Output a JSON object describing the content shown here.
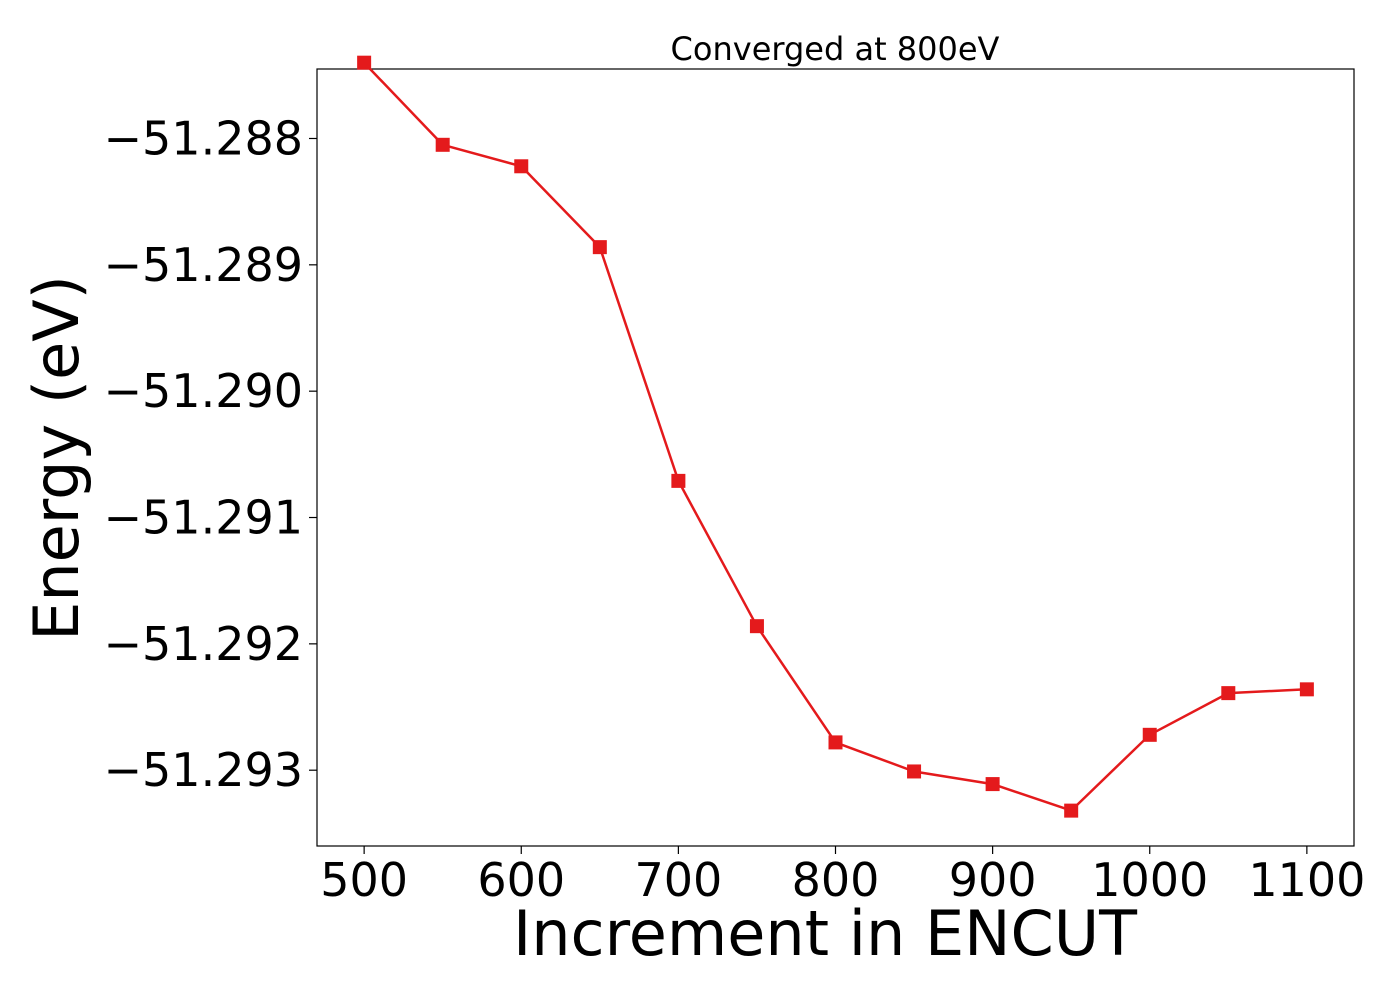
{
  "chart_data": {
    "type": "line",
    "title": "Converged at 800eV",
    "xlabel": "Increment in ENCUT",
    "ylabel": "Energy (eV)",
    "xlim": [
      470,
      1130
    ],
    "ylim": [
      -51.2936,
      -51.28745
    ],
    "x_ticks": [
      500,
      600,
      700,
      800,
      900,
      1000,
      1100
    ],
    "x_tick_labels": [
      "500",
      "600",
      "700",
      "800",
      "900",
      "1000",
      "1100"
    ],
    "y_ticks": [
      -51.288,
      -51.289,
      -51.29,
      -51.291,
      -51.292,
      -51.293
    ],
    "y_tick_labels": [
      "−51.288",
      "−51.289",
      "−51.290",
      "−51.291",
      "−51.292",
      "−51.293"
    ],
    "grid": false,
    "legend": "none",
    "series": [
      {
        "color": "#e41a1c",
        "marker": "square",
        "x": [
          500,
          550,
          600,
          650,
          700,
          750,
          800,
          850,
          900,
          950,
          1000,
          1050,
          1100
        ],
        "y": [
          -51.2874,
          -51.28805,
          -51.28822,
          -51.28886,
          -51.29071,
          -51.29186,
          -51.29278,
          -51.29301,
          -51.29311,
          -51.29332,
          -51.29272,
          -51.29239,
          -51.29236
        ]
      }
    ]
  }
}
